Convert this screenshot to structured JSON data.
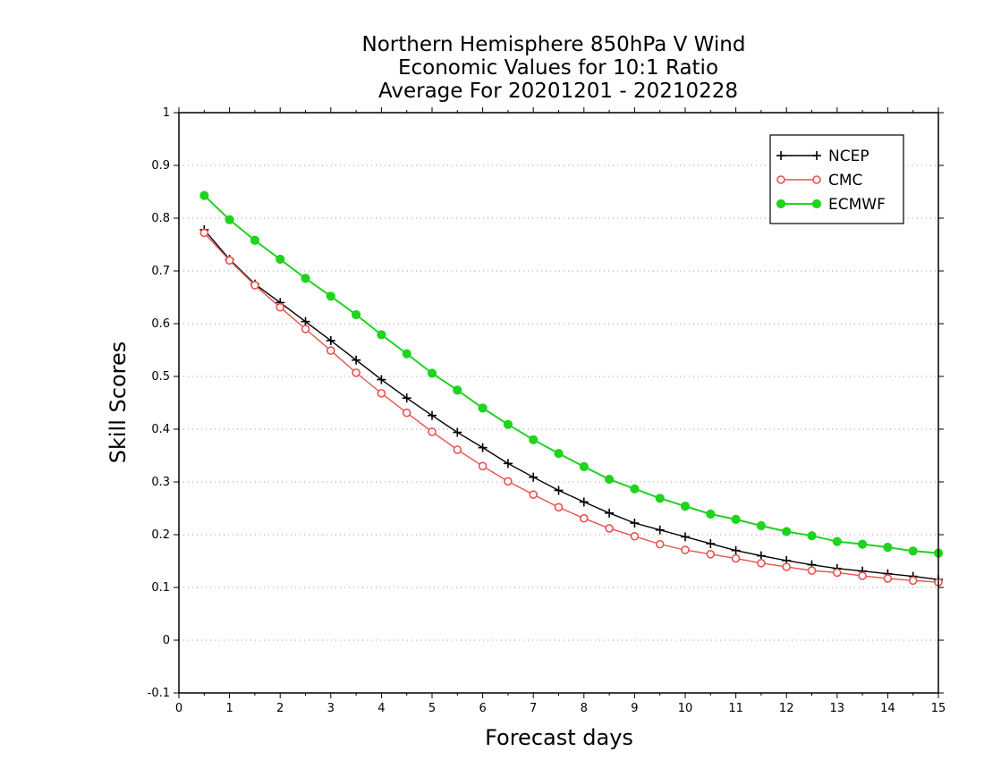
{
  "chart_data": {
    "type": "line",
    "title": [
      "Northern Hemisphere 850hPa V Wind",
      "Economic Values for 10:1 Ratio",
      "Average For 20201201 - 20210228"
    ],
    "xlabel": "Forecast days",
    "ylabel": "Skill Scores",
    "xlim": [
      0,
      15
    ],
    "ylim": [
      -0.1,
      1
    ],
    "xticks": [
      "0",
      "1",
      "2",
      "3",
      "4",
      "5",
      "6",
      "7",
      "8",
      "9",
      "10",
      "11",
      "12",
      "13",
      "14",
      "15"
    ],
    "yticks": [
      "-0.1",
      "0",
      "0.1",
      "0.2",
      "0.3",
      "0.4",
      "0.5",
      "0.6",
      "0.7",
      "0.8",
      "0.9",
      "1"
    ],
    "grid": true,
    "legend_position": "top-right",
    "x": [
      0.5,
      1,
      1.5,
      2,
      2.5,
      3,
      3.5,
      4,
      4.5,
      5,
      5.5,
      6,
      6.5,
      7,
      7.5,
      8,
      8.5,
      9,
      9.5,
      10,
      10.5,
      11,
      11.5,
      12,
      12.5,
      13,
      13.5,
      14,
      14.5,
      15
    ],
    "series": [
      {
        "name": "NCEP",
        "color": "#000000",
        "marker": "plus",
        "values": [
          0.778,
          0.722,
          0.675,
          0.64,
          0.604,
          0.568,
          0.531,
          0.494,
          0.459,
          0.426,
          0.394,
          0.365,
          0.335,
          0.309,
          0.284,
          0.262,
          0.241,
          0.222,
          0.209,
          0.196,
          0.183,
          0.17,
          0.16,
          0.151,
          0.143,
          0.136,
          0.131,
          0.126,
          0.121,
          0.115
        ]
      },
      {
        "name": "CMC",
        "color": "#e8524f",
        "marker": "open-circle",
        "values": [
          0.772,
          0.72,
          0.673,
          0.631,
          0.59,
          0.549,
          0.507,
          0.468,
          0.431,
          0.395,
          0.361,
          0.33,
          0.301,
          0.276,
          0.252,
          0.231,
          0.212,
          0.197,
          0.182,
          0.171,
          0.163,
          0.155,
          0.146,
          0.139,
          0.132,
          0.128,
          0.122,
          0.117,
          0.113,
          0.11
        ]
      },
      {
        "name": "ECMWF",
        "color": "#1fd31f",
        "marker": "filled-circle",
        "values": [
          0.843,
          0.797,
          0.758,
          0.722,
          0.686,
          0.652,
          0.617,
          0.579,
          0.543,
          0.506,
          0.474,
          0.44,
          0.409,
          0.38,
          0.354,
          0.329,
          0.305,
          0.287,
          0.269,
          0.254,
          0.239,
          0.229,
          0.217,
          0.206,
          0.198,
          0.187,
          0.182,
          0.176,
          0.169,
          0.165
        ]
      }
    ]
  }
}
